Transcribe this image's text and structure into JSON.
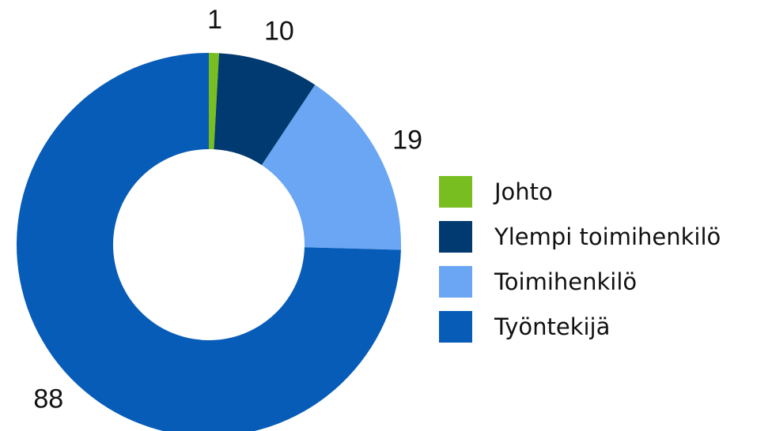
{
  "chart_data": {
    "type": "donut",
    "categories": [
      "Johto",
      "Ylempi toimihenkilö",
      "Toimihenkilö",
      "Työntekijä"
    ],
    "values": [
      1,
      10,
      19,
      88
    ],
    "colors": [
      "#78be20",
      "#003a70",
      "#6aa6f3",
      "#075cb8"
    ],
    "legend": "right"
  }
}
